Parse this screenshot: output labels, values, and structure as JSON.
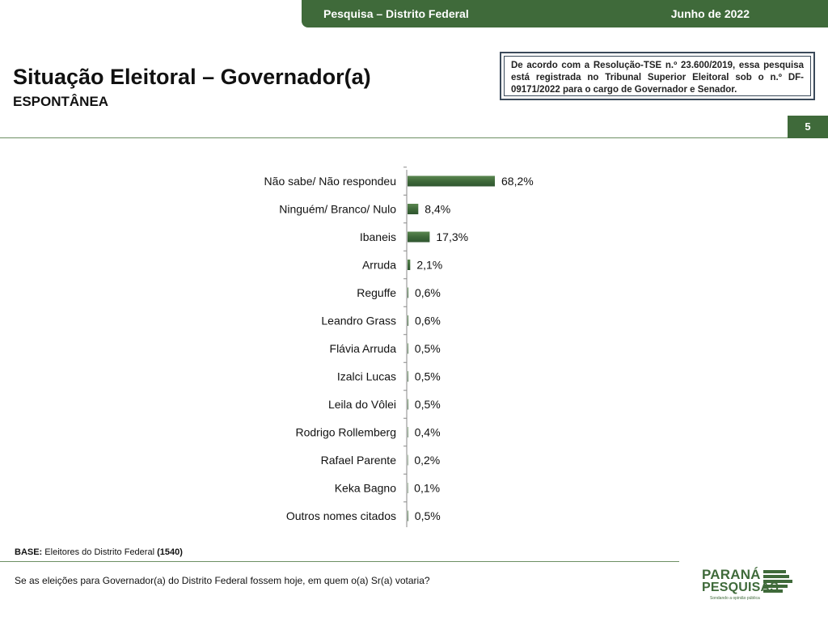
{
  "header": {
    "survey": "Pesquisa – Distrito Federal",
    "date": "Junho de 2022"
  },
  "title": "Situação Eleitoral – Governador(a)",
  "subtitle": "ESPONTÂNEA",
  "notice": "De acordo com a Resolução-TSE n.º 23.600/2019, essa pesquisa está registrada no Tribunal Superior Eleitoral sob o n.º DF-09171/2022 para o cargo de Governador e Senador.",
  "page_number": "5",
  "base": {
    "label": "BASE:",
    "text": "Eleitores do Distrito Federal",
    "count": "(1540)"
  },
  "question": "Se as eleições para Governador(a) do Distrito Federal fossem hoje, em quem o(a) Sr(a) votaria?",
  "logo": {
    "line1": "PARANÁ",
    "line2": "PESQUISAS",
    "tagline": "Sondando a opinião pública"
  },
  "colors": {
    "brand": "#3f6a3a",
    "bar": "#4a7342"
  },
  "chart_data": {
    "type": "bar",
    "orientation": "horizontal",
    "categories": [
      "Não sabe/ Não respondeu",
      "Ninguém/ Branco/ Nulo",
      "Ibaneis",
      "Arruda",
      "Reguffe",
      "Leandro Grass",
      "Flávia Arruda",
      "Izalci Lucas",
      "Leila do Vôlei",
      "Rodrigo Rollemberg",
      "Rafael Parente",
      "Keka Bagno",
      "Outros nomes citados"
    ],
    "values": [
      68.2,
      8.4,
      17.3,
      2.1,
      0.6,
      0.6,
      0.5,
      0.5,
      0.5,
      0.4,
      0.2,
      0.1,
      0.5
    ],
    "value_labels": [
      "68,2%",
      "8,4%",
      "17,3%",
      "2,1%",
      "0,6%",
      "0,6%",
      "0,5%",
      "0,5%",
      "0,5%",
      "0,4%",
      "0,2%",
      "0,1%",
      "0,5%"
    ],
    "xlim": [
      0,
      100
    ],
    "grid": false,
    "legend": "none"
  }
}
